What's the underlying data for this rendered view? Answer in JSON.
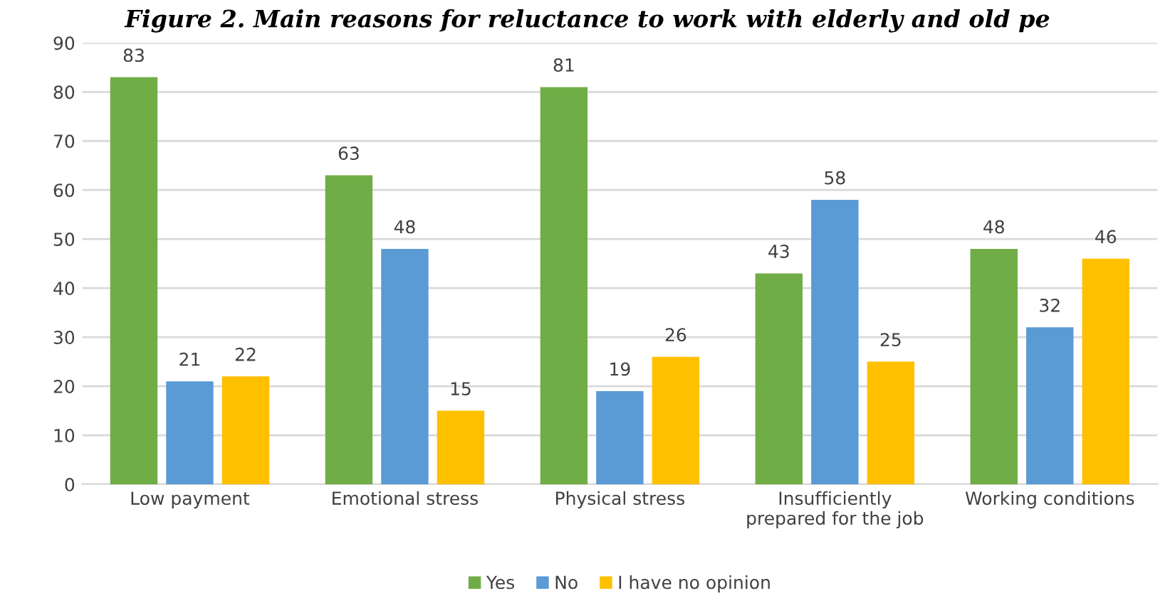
{
  "chart_data": {
    "type": "bar",
    "title": "Figure 2. Main reasons for reluctance to work with elderly and old pe",
    "categories": [
      "Low payment",
      "Emotional stress",
      "Physical stress",
      "Insufficiently\nprepared for the job",
      "Working conditions"
    ],
    "series": [
      {
        "name": "Yes",
        "color": "#70ad47",
        "values": [
          83,
          63,
          81,
          43,
          48
        ]
      },
      {
        "name": "No",
        "color": "#5b9bd5",
        "values": [
          21,
          48,
          19,
          58,
          32
        ]
      },
      {
        "name": "I have no opinion",
        "color": "#ffc000",
        "values": [
          22,
          15,
          26,
          25,
          46
        ]
      }
    ],
    "ylim": [
      0,
      90
    ],
    "yticks": [
      0,
      10,
      20,
      30,
      40,
      50,
      60,
      70,
      80,
      90
    ],
    "grid": "y",
    "legend": "bottom",
    "data_labels": true
  }
}
